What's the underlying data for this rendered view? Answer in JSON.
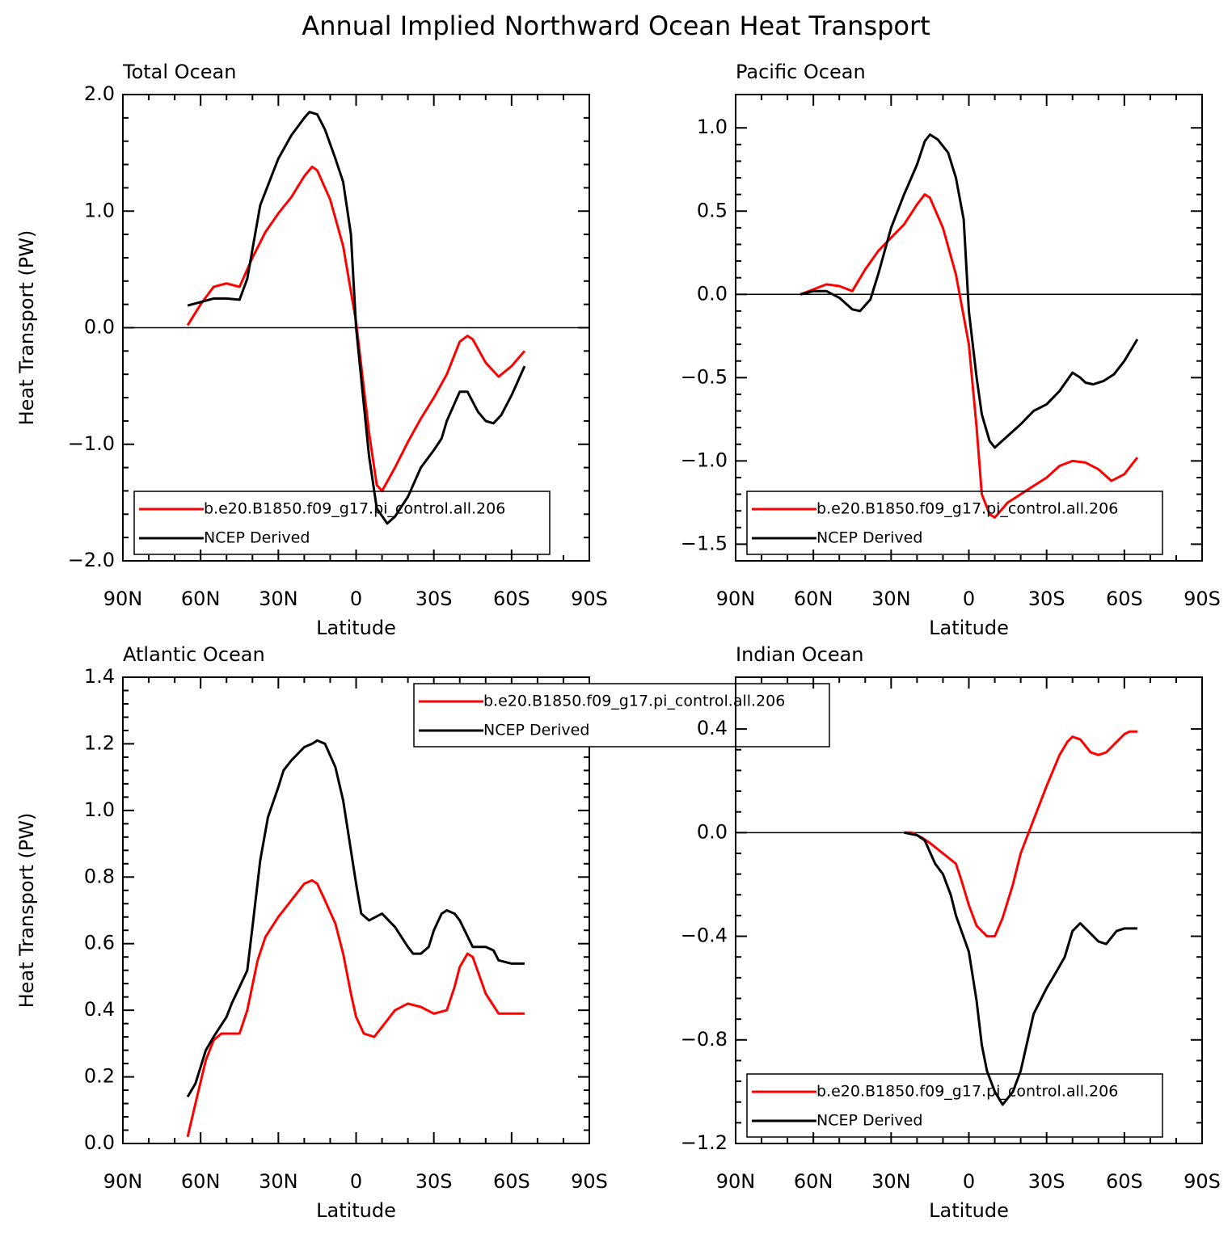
{
  "title": "Annual Implied Northward Ocean Heat Transport",
  "chart_data": [
    {
      "type": "line",
      "title": "Total Ocean",
      "xlabel": "Latitude",
      "ylabel": "Heat Transport (PW)",
      "xlim": [
        90,
        -90
      ],
      "xticks": [
        {
          "value": 90,
          "label": "90N"
        },
        {
          "value": 60,
          "label": "60N"
        },
        {
          "value": 30,
          "label": "30N"
        },
        0,
        {
          "value": -30,
          "label": "30S"
        },
        {
          "value": -60,
          "label": "60S"
        },
        {
          "value": -90,
          "label": "90S"
        }
      ],
      "ylim": [
        -2,
        2
      ],
      "yticks": [
        {
          "value": -2,
          "label": "−2.0"
        },
        {
          "value": -1,
          "label": "−1.0"
        },
        {
          "value": 0,
          "label": "0.0"
        },
        {
          "value": 1,
          "label": "1.0"
        },
        {
          "value": 2,
          "label": "2.0"
        }
      ],
      "legend": "lower left",
      "series": [
        {
          "name": "b.e20.B1850.f09_g17.pi_control.all.206",
          "color": "#ff0000",
          "x": [
            65,
            60,
            55,
            50,
            45,
            40,
            35,
            30,
            25,
            20,
            17,
            15,
            10,
            5,
            0,
            -5,
            -8,
            -10,
            -15,
            -20,
            -25,
            -30,
            -35,
            -40,
            -43,
            -45,
            -50,
            -55,
            -60,
            -65
          ],
          "values": [
            0.02,
            0.2,
            0.35,
            0.38,
            0.35,
            0.6,
            0.82,
            0.98,
            1.12,
            1.3,
            1.38,
            1.35,
            1.1,
            0.7,
            0.05,
            -0.9,
            -1.35,
            -1.4,
            -1.2,
            -0.98,
            -0.78,
            -0.6,
            -0.4,
            -0.12,
            -0.07,
            -0.1,
            -0.3,
            -0.42,
            -0.33,
            -0.2
          ]
        },
        {
          "name": "NCEP Derived",
          "color": "#000000",
          "x": [
            65,
            60,
            55,
            50,
            45,
            42,
            37,
            30,
            25,
            20,
            18,
            15,
            12,
            8,
            5,
            2,
            0,
            -5,
            -8,
            -12,
            -15,
            -20,
            -25,
            -30,
            -33,
            -35,
            -40,
            -43,
            -47,
            -50,
            -53,
            -56,
            -60,
            -65
          ],
          "values": [
            0.19,
            0.22,
            0.25,
            0.25,
            0.24,
            0.42,
            1.05,
            1.45,
            1.65,
            1.8,
            1.85,
            1.83,
            1.7,
            1.45,
            1.25,
            0.8,
            0,
            -1.1,
            -1.55,
            -1.68,
            -1.62,
            -1.45,
            -1.2,
            -1.05,
            -0.95,
            -0.8,
            -0.55,
            -0.55,
            -0.72,
            -0.8,
            -0.82,
            -0.75,
            -0.58,
            -0.33
          ]
        }
      ]
    },
    {
      "type": "line",
      "title": "Pacific Ocean",
      "xlabel": "Latitude",
      "xlim": [
        90,
        -90
      ],
      "xticks": [
        {
          "value": 90,
          "label": "90N"
        },
        {
          "value": 60,
          "label": "60N"
        },
        {
          "value": 30,
          "label": "30N"
        },
        0,
        {
          "value": -30,
          "label": "30S"
        },
        {
          "value": -60,
          "label": "60S"
        },
        {
          "value": -90,
          "label": "90S"
        }
      ],
      "ylim": [
        -1.6,
        1.2
      ],
      "yticks": [
        {
          "value": -1.5,
          "label": "−1.5"
        },
        {
          "value": -1,
          "label": "−1.0"
        },
        {
          "value": -0.5,
          "label": "−0.5"
        },
        {
          "value": 0,
          "label": "0.0"
        },
        0.5,
        {
          "value": 1,
          "label": "1.0"
        }
      ],
      "legend": "lower left",
      "series": [
        {
          "name": "b.e20.B1850.f09_g17.pi_control.all.206",
          "color": "#ff0000",
          "x": [
            65,
            60,
            55,
            50,
            45,
            40,
            35,
            30,
            25,
            20,
            17,
            15,
            10,
            5,
            0,
            -3,
            -5,
            -8,
            -10,
            -15,
            -20,
            -25,
            -30,
            -35,
            -40,
            -45,
            -50,
            -55,
            -60,
            -65
          ],
          "values": [
            0,
            0.03,
            0.06,
            0.05,
            0.02,
            0.15,
            0.26,
            0.34,
            0.42,
            0.54,
            0.6,
            0.58,
            0.4,
            0.12,
            -0.3,
            -0.8,
            -1.2,
            -1.32,
            -1.34,
            -1.25,
            -1.2,
            -1.15,
            -1.1,
            -1.03,
            -1,
            -1.01,
            -1.05,
            -1.12,
            -1.08,
            -0.98
          ]
        },
        {
          "name": "NCEP Derived",
          "color": "#000000",
          "x": [
            65,
            60,
            55,
            50,
            45,
            42,
            38,
            35,
            30,
            25,
            20,
            17,
            15,
            12,
            8,
            5,
            2,
            0,
            -3,
            -5,
            -8,
            -10,
            -15,
            -20,
            -25,
            -30,
            -35,
            -40,
            -43,
            -45,
            -48,
            -52,
            -56,
            -60,
            -65
          ],
          "values": [
            0,
            0.02,
            0.02,
            -0.02,
            -0.09,
            -0.1,
            -0.03,
            0.12,
            0.4,
            0.6,
            0.78,
            0.92,
            0.96,
            0.93,
            0.85,
            0.7,
            0.45,
            -0.1,
            -0.5,
            -0.72,
            -0.88,
            -0.92,
            -0.85,
            -0.78,
            -0.7,
            -0.66,
            -0.58,
            -0.47,
            -0.5,
            -0.53,
            -0.54,
            -0.52,
            -0.48,
            -0.4,
            -0.27
          ]
        }
      ]
    },
    {
      "type": "line",
      "title": "Atlantic Ocean",
      "xlabel": "Latitude",
      "ylabel": "Heat Transport (PW)",
      "xlim": [
        90,
        -90
      ],
      "xticks": [
        {
          "value": 90,
          "label": "90N"
        },
        {
          "value": 60,
          "label": "60N"
        },
        {
          "value": 30,
          "label": "30N"
        },
        0,
        {
          "value": -30,
          "label": "30S"
        },
        {
          "value": -60,
          "label": "60S"
        },
        {
          "value": -90,
          "label": "90S"
        }
      ],
      "ylim": [
        0,
        1.4
      ],
      "yticks": [
        {
          "value": 0,
          "label": "0.0"
        },
        0.2,
        0.4,
        0.6,
        0.8,
        {
          "value": 1,
          "label": "1.0"
        },
        1.2,
        1.4
      ],
      "legend": "upper right",
      "series": [
        {
          "name": "b.e20.B1850.f09_g17.pi_control.all.206",
          "color": "#ff0000",
          "x": [
            65,
            62,
            58,
            55,
            52,
            48,
            45,
            42,
            38,
            35,
            30,
            25,
            20,
            17,
            15,
            12,
            8,
            5,
            2,
            0,
            -3,
            -7,
            -10,
            -15,
            -20,
            -25,
            -30,
            -35,
            -38,
            -40,
            -43,
            -45,
            -50,
            -55,
            -60,
            -65
          ],
          "values": [
            0.02,
            0.12,
            0.25,
            0.31,
            0.33,
            0.33,
            0.33,
            0.4,
            0.55,
            0.62,
            0.68,
            0.73,
            0.78,
            0.79,
            0.78,
            0.73,
            0.66,
            0.57,
            0.45,
            0.38,
            0.33,
            0.32,
            0.35,
            0.4,
            0.42,
            0.41,
            0.39,
            0.4,
            0.47,
            0.53,
            0.57,
            0.56,
            0.45,
            0.39,
            0.39,
            0.39
          ]
        },
        {
          "name": "NCEP Derived",
          "color": "#000000",
          "x": [
            65,
            62,
            58,
            55,
            50,
            48,
            45,
            42,
            40,
            37,
            34,
            30,
            28,
            25,
            20,
            17,
            15,
            12,
            8,
            5,
            2,
            0,
            -2,
            -5,
            -10,
            -15,
            -20,
            -22,
            -25,
            -28,
            -30,
            -33,
            -35,
            -38,
            -40,
            -45,
            -50,
            -53,
            -55,
            -60,
            -65
          ],
          "values": [
            0.14,
            0.18,
            0.28,
            0.32,
            0.38,
            0.42,
            0.47,
            0.52,
            0.65,
            0.85,
            0.98,
            1.07,
            1.12,
            1.15,
            1.19,
            1.2,
            1.21,
            1.2,
            1.13,
            1.03,
            0.88,
            0.78,
            0.69,
            0.67,
            0.69,
            0.65,
            0.59,
            0.57,
            0.57,
            0.59,
            0.64,
            0.69,
            0.7,
            0.69,
            0.67,
            0.59,
            0.59,
            0.58,
            0.55,
            0.54,
            0.54
          ]
        }
      ]
    },
    {
      "type": "line",
      "title": "Indian Ocean",
      "xlabel": "Latitude",
      "xlim": [
        90,
        -90
      ],
      "xticks": [
        {
          "value": 90,
          "label": "90N"
        },
        {
          "value": 60,
          "label": "60N"
        },
        {
          "value": 30,
          "label": "30N"
        },
        0,
        {
          "value": -30,
          "label": "30S"
        },
        {
          "value": -60,
          "label": "60S"
        },
        {
          "value": -90,
          "label": "90S"
        }
      ],
      "ylim": [
        -1.2,
        0.6
      ],
      "yticks": [
        {
          "value": -1.2,
          "label": "−1.2"
        },
        {
          "value": -0.8,
          "label": "−0.8"
        },
        {
          "value": -0.4,
          "label": "−0.4"
        },
        {
          "value": 0,
          "label": "0.0"
        },
        0.4
      ],
      "legend": "lower left",
      "series": [
        {
          "name": "b.e20.B1850.f09_g17.pi_control.all.206",
          "color": "#ff0000",
          "x": [
            25,
            22,
            18,
            15,
            10,
            5,
            3,
            0,
            -3,
            -7,
            -10,
            -13,
            -17,
            -20,
            -25,
            -30,
            -35,
            -38,
            -40,
            -43,
            -47,
            -50,
            -53,
            -57,
            -60,
            -62,
            -65
          ],
          "values": [
            0,
            0,
            -0.02,
            -0.04,
            -0.08,
            -0.12,
            -0.18,
            -0.28,
            -0.36,
            -0.4,
            -0.4,
            -0.33,
            -0.2,
            -0.08,
            0.05,
            0.18,
            0.3,
            0.35,
            0.37,
            0.36,
            0.31,
            0.3,
            0.31,
            0.35,
            0.38,
            0.39,
            0.39
          ]
        },
        {
          "name": "NCEP Derived",
          "color": "#000000",
          "x": [
            25,
            20,
            17,
            13,
            10,
            7,
            5,
            0,
            -3,
            -5,
            -7,
            -10,
            -13,
            -17,
            -20,
            -25,
            -30,
            -33,
            -37,
            -40,
            -43,
            -47,
            -50,
            -53,
            -57,
            -60,
            -65
          ],
          "values": [
            0,
            -0.01,
            -0.03,
            -0.12,
            -0.16,
            -0.24,
            -0.32,
            -0.46,
            -0.65,
            -0.82,
            -0.92,
            -1,
            -1.05,
            -1,
            -0.92,
            -0.7,
            -0.6,
            -0.55,
            -0.48,
            -0.38,
            -0.35,
            -0.39,
            -0.42,
            -0.43,
            -0.38,
            -0.37,
            -0.37
          ]
        }
      ]
    }
  ]
}
